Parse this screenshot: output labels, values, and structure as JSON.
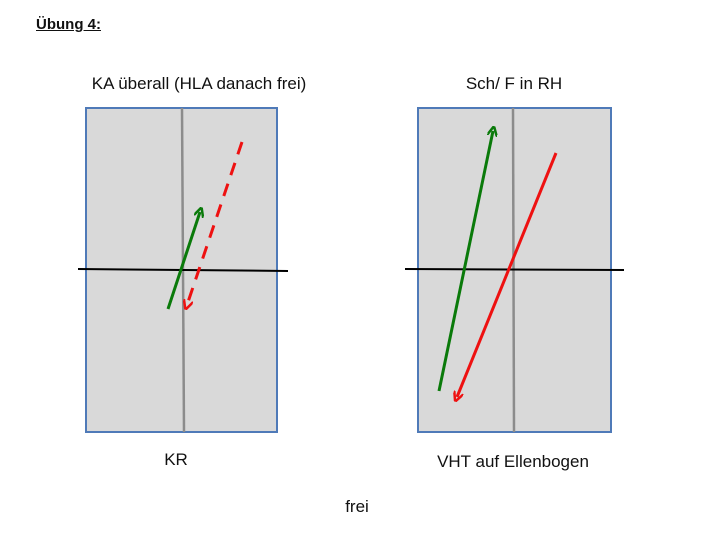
{
  "heading": "Übung 4:",
  "left_panel": {
    "top_label": "KA überall (HLA danach frei)",
    "bottom_label": "KR"
  },
  "right_panel": {
    "top_label": "Sch/ F in RH",
    "bottom_label": "VHT auf Ellenbogen"
  },
  "footer_label": "frei",
  "colors": {
    "panel_fill": "#d9d9d9",
    "panel_border": "#4f7ab8",
    "green_arrow": "#0a7a0a",
    "red_arrow": "#ee1111",
    "axis_line": "#000000",
    "center_line": "#8c8c8c"
  }
}
